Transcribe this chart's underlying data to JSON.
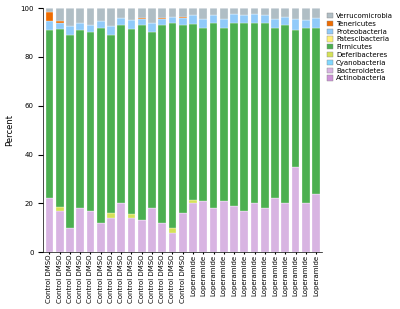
{
  "categories": [
    "Control DMSO",
    "Control DMSO",
    "Control DMSO",
    "Control DMSO",
    "Control DMSO",
    "Control DMSO",
    "Control DMSO",
    "Control DMSO",
    "Control DMSO",
    "Control DMSO",
    "Control DMSO",
    "Control DMSO",
    "Control DMSO",
    "Control DMSO",
    "Loperamide",
    "Loperamide",
    "Loperamide",
    "Loperamide",
    "Loperamide",
    "Loperamide",
    "Loperamide",
    "Loperamide",
    "Loperamide",
    "Loperamide",
    "Loperamide",
    "Loperamide",
    "Loperamide"
  ],
  "phyla_order": [
    "Bacteroidetes",
    "Deferibacteres",
    "Firmicutes",
    "Proteobacteria",
    "Tenericutes",
    "Verrucomicrobia",
    "Patescibacteria",
    "Cyanobacteria",
    "Actinobacteria"
  ],
  "colors": {
    "Bacteroidetes": "#d8b4e2",
    "Deferibacteres": "#d4e157",
    "Firmicutes": "#4caf50",
    "Proteobacteria": "#90caf9",
    "Tenericutes": "#ef6c00",
    "Verrucomicrobia": "#b0bec5",
    "Patescibacteria": "#fff176",
    "Cyanobacteria": "#80d8ff",
    "Actinobacteria": "#ce93d8"
  },
  "data": {
    "Bacteroidetes": [
      22.0,
      17.0,
      10.0,
      18.0,
      17.0,
      12.0,
      14.0,
      20.0,
      14.0,
      13.0,
      18.0,
      12.0,
      8.0,
      16.0,
      20.0,
      21.0,
      18.0,
      21.0,
      19.0,
      17.0,
      20.0,
      18.0,
      22.0,
      20.0,
      35.0,
      20.0,
      24.0
    ],
    "Deferibacteres": [
      0.0,
      1.5,
      0.0,
      0.0,
      0.0,
      0.0,
      2.0,
      0.0,
      1.5,
      0.0,
      0.0,
      0.0,
      2.0,
      0.0,
      1.5,
      0.0,
      0.0,
      0.0,
      0.0,
      0.0,
      0.0,
      0.0,
      0.0,
      0.0,
      0.0,
      0.0,
      0.0
    ],
    "Firmicutes": [
      69.0,
      73.0,
      79.0,
      73.0,
      73.0,
      80.0,
      73.0,
      73.0,
      76.0,
      80.0,
      72.0,
      81.0,
      84.0,
      77.0,
      72.0,
      71.0,
      76.0,
      71.0,
      75.0,
      77.0,
      74.0,
      76.0,
      70.0,
      73.0,
      56.0,
      72.0,
      68.0
    ],
    "Proteobacteria": [
      3.5,
      2.5,
      3.5,
      3.0,
      3.0,
      2.5,
      3.5,
      3.0,
      3.5,
      2.5,
      4.0,
      2.5,
      2.5,
      3.0,
      3.5,
      3.5,
      3.0,
      3.5,
      3.5,
      3.0,
      3.5,
      3.0,
      3.5,
      3.5,
      4.5,
      3.0,
      4.0
    ],
    "Tenericutes": [
      4.0,
      0.5,
      0.0,
      0.0,
      0.0,
      0.0,
      0.0,
      0.0,
      0.0,
      0.5,
      0.0,
      0.5,
      0.0,
      0.5,
      0.0,
      0.0,
      0.0,
      0.0,
      0.0,
      0.0,
      0.0,
      0.0,
      0.0,
      0.0,
      0.0,
      0.0,
      0.0
    ],
    "Verrucomicrobia": [
      1.5,
      5.5,
      7.5,
      6.0,
      7.0,
      5.5,
      7.5,
      4.0,
      5.0,
      4.0,
      6.0,
      4.0,
      3.5,
      3.5,
      3.0,
      4.5,
      3.0,
      4.5,
      2.5,
      3.0,
      2.5,
      3.0,
      4.5,
      3.5,
      4.5,
      5.0,
      4.0
    ],
    "Patescibacteria": [
      0.0,
      0.0,
      0.0,
      0.0,
      0.0,
      0.0,
      0.0,
      0.0,
      0.0,
      0.0,
      0.0,
      0.0,
      0.0,
      0.0,
      0.0,
      0.0,
      0.0,
      0.0,
      0.0,
      0.0,
      0.0,
      0.0,
      0.0,
      0.0,
      0.0,
      0.0,
      0.0
    ],
    "Cyanobacteria": [
      0.0,
      0.0,
      0.0,
      0.0,
      0.0,
      0.0,
      0.0,
      0.0,
      0.0,
      0.0,
      0.0,
      0.0,
      0.0,
      0.0,
      0.0,
      0.0,
      0.0,
      0.0,
      0.0,
      0.0,
      0.0,
      0.0,
      0.0,
      0.0,
      0.0,
      0.0,
      0.0
    ],
    "Actinobacteria": [
      0.0,
      0.0,
      0.0,
      0.0,
      0.0,
      0.0,
      0.0,
      0.0,
      0.0,
      0.0,
      0.0,
      0.0,
      0.0,
      0.0,
      0.0,
      0.0,
      0.0,
      0.0,
      0.0,
      0.0,
      0.0,
      0.0,
      0.0,
      0.0,
      0.0,
      0.0,
      0.0
    ]
  },
  "legend_order": [
    "Verrucomicrobia",
    "Tenericutes",
    "Proteobacteria",
    "Patescibacteria",
    "Firmicutes",
    "Deferibacteres",
    "Cyanobacteria",
    "Bacteroidetes",
    "Actinobacteria"
  ],
  "ylabel": "Percent",
  "ylim": [
    0,
    100
  ],
  "yticks": [
    0,
    20,
    40,
    60,
    80,
    100
  ],
  "background_color": "#ffffff",
  "bar_width": 0.75,
  "tick_fontsize": 5,
  "label_fontsize": 6,
  "legend_fontsize": 5
}
